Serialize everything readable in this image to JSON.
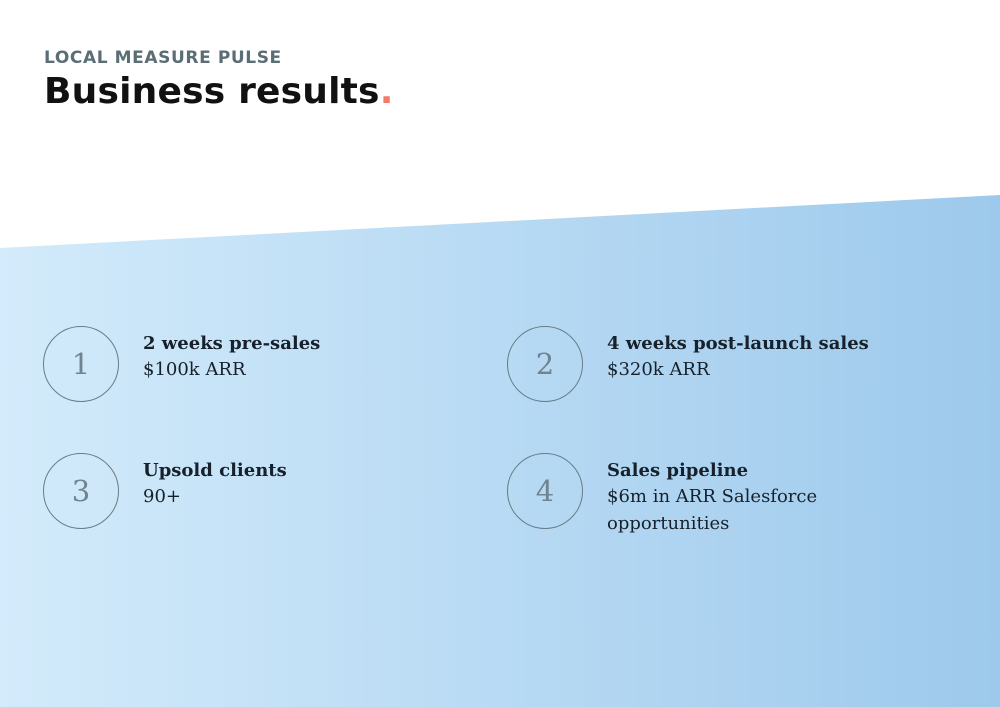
{
  "header": {
    "eyebrow": "LOCAL MEASURE PULSE",
    "title": "Business results",
    "title_dot": "."
  },
  "stats": [
    {
      "number": "1",
      "title": "2 weeks pre-sales",
      "value": "$100k ARR"
    },
    {
      "number": "2",
      "title": "4 weeks post-launch sales",
      "value": "$320k ARR"
    },
    {
      "number": "3",
      "title": "Upsold clients",
      "value": "90+"
    },
    {
      "number": "4",
      "title": "Sales pipeline",
      "value": "$6m in ARR Salesforce opportunities"
    }
  ],
  "colors": {
    "accent_dot": "#f07b6e",
    "band_left": "#d3ebfb",
    "band_right": "#9dc9ec",
    "eyebrow": "#5b6e75",
    "circle_stroke": "#687c88"
  }
}
